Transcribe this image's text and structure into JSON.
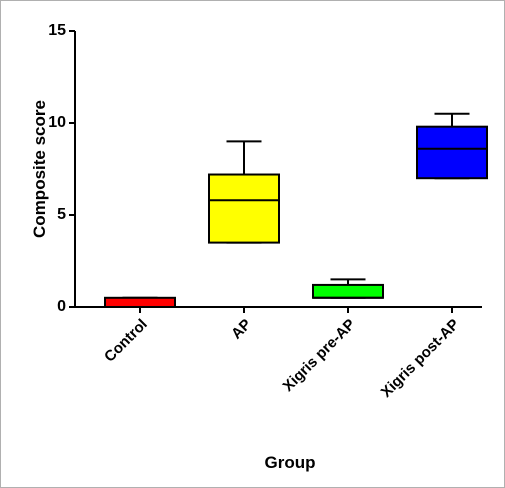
{
  "chart_data": {
    "type": "box",
    "y_label": "Composite score",
    "x_label": "Group",
    "categories": [
      "Control",
      "AP",
      "Xigris pre-AP",
      "Xigris post-AP"
    ],
    "colors": [
      "#ff0000",
      "#ffff00",
      "#00ff00",
      "#0000ff"
    ],
    "boxes": [
      {
        "min": 0,
        "q1": 0,
        "median": 0,
        "q3": 0.5,
        "max": 0.5
      },
      {
        "min": 3.5,
        "q1": 3.5,
        "median": 5.8,
        "q3": 7.2,
        "max": 9
      },
      {
        "min": 0.5,
        "q1": 0.5,
        "median": 0.5,
        "q3": 1.2,
        "max": 1.5
      },
      {
        "min": 7,
        "q1": 7,
        "median": 8.6,
        "q3": 9.8,
        "max": 10.5
      }
    ],
    "ylim": [
      0,
      15
    ],
    "yticks": [
      0,
      5,
      10,
      15
    ]
  }
}
